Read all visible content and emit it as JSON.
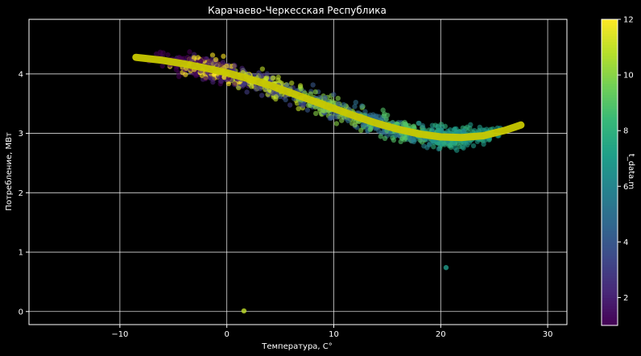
{
  "chart_data": {
    "type": "scatter",
    "title": "Карачаево-Черкесская Республика",
    "xlabel": "Температура, C°",
    "ylabel": "Потребление, МВт",
    "xlim": [
      -18.5,
      31.8
    ],
    "ylim": [
      -0.22,
      4.92
    ],
    "x_ticks": [
      -10,
      0,
      10,
      20,
      30
    ],
    "x_tick_labels": [
      "−10",
      "0",
      "10",
      "20",
      "30"
    ],
    "y_ticks": [
      0,
      1,
      2,
      3,
      4
    ],
    "y_tick_labels": [
      "0",
      "1",
      "2",
      "3",
      "4"
    ],
    "grid": true,
    "background": "#000000",
    "colorbar": {
      "label": "t_data.m",
      "colormap": "viridis",
      "range": [
        1,
        12
      ],
      "ticks": [
        2,
        4,
        6,
        8,
        10,
        12
      ],
      "tick_labels": [
        "2",
        "4",
        "6",
        "8",
        "10",
        "12"
      ]
    },
    "trend": {
      "color": "#c8c800",
      "x": [
        -8.5,
        -6,
        -4,
        -2,
        0,
        2,
        4,
        6,
        8,
        10,
        12,
        14,
        16,
        18,
        20,
        22,
        24,
        26,
        27.5
      ],
      "y": [
        4.28,
        4.23,
        4.17,
        4.1,
        4.02,
        3.92,
        3.81,
        3.68,
        3.55,
        3.42,
        3.29,
        3.17,
        3.07,
        2.99,
        2.94,
        2.93,
        2.96,
        3.05,
        3.14
      ]
    },
    "outliers": [
      {
        "x": 1.6,
        "y": 0.01,
        "month": 11
      },
      {
        "x": 20.5,
        "y": 0.74,
        "month": 7
      }
    ]
  }
}
